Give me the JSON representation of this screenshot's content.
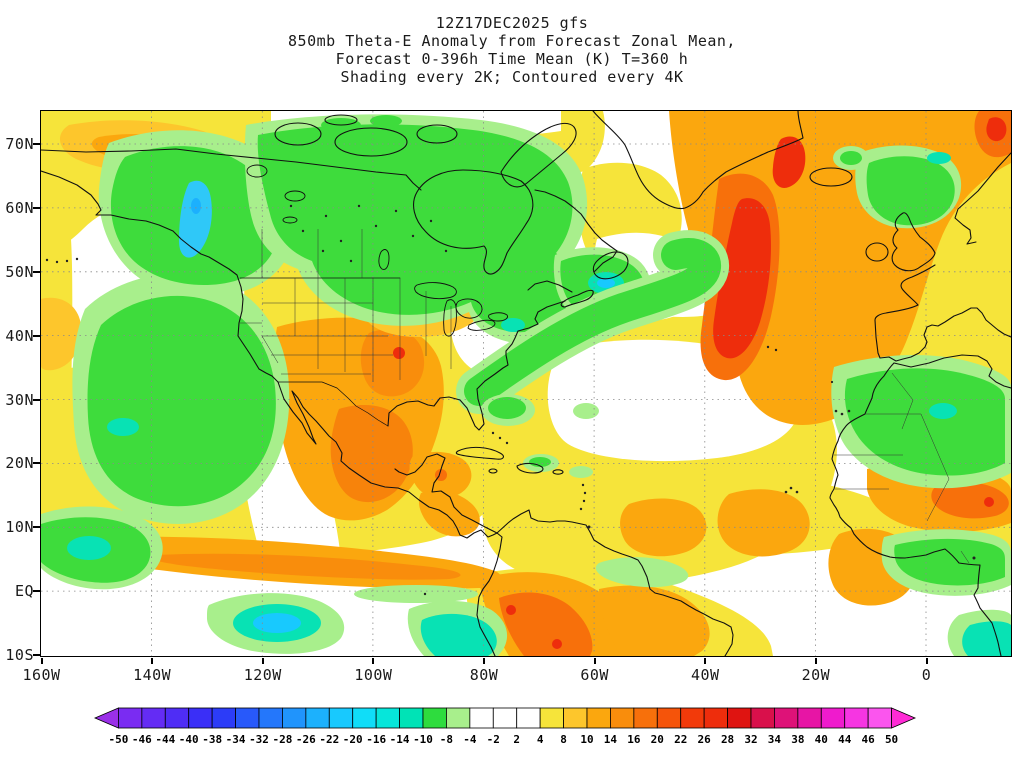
{
  "title": {
    "line1": "12Z17DEC2025 gfs",
    "line2": "850mb Theta-E Anomaly from Forecast Zonal Mean,",
    "line3": "Forecast 0-396h Time Mean (K) T=360 h",
    "line4": "Shading every 2K; Contoured every 4K"
  },
  "axes": {
    "lat_labels": [
      "70N",
      "60N",
      "50N",
      "40N",
      "30N",
      "20N",
      "10N",
      "EQ",
      "10S"
    ],
    "lon_labels": [
      "160W",
      "140W",
      "120W",
      "100W",
      "80W",
      "60W",
      "40W",
      "20W",
      "0"
    ]
  },
  "colorbar": {
    "labels": [
      "-50",
      "-46",
      "-44",
      "-40",
      "-38",
      "-34",
      "-32",
      "-28",
      "-26",
      "-22",
      "-20",
      "-16",
      "-14",
      "-10",
      "-8",
      "-4",
      "-2",
      "2",
      "4",
      "8",
      "10",
      "14",
      "16",
      "20",
      "22",
      "26",
      "28",
      "32",
      "34",
      "38",
      "40",
      "44",
      "46",
      "50"
    ],
    "colors": [
      "#9a30e8",
      "#7a2cf2",
      "#642cf4",
      "#4f2df5",
      "#3a2ff7",
      "#2c3cf8",
      "#2859fa",
      "#2477fb",
      "#2094fc",
      "#1cb1fd",
      "#18c9fe",
      "#10ddf8",
      "#06e6da",
      "#00e3b6",
      "#2edc3e",
      "#a8ef8c",
      "#ffffff",
      "#ffffff",
      "#ffffff",
      "#f6e43a",
      "#fdc62c",
      "#fba70e",
      "#f98d0c",
      "#f7700b",
      "#f5540a",
      "#f23a0a",
      "#ee2d0c",
      "#df1411",
      "#d9104b",
      "#de1278",
      "#e715a5",
      "#ef1bcd",
      "#f635e2",
      "#fb55ee",
      "#ff2bd6"
    ]
  },
  "chart_data": {
    "type": "heatmap",
    "title": "12Z17DEC2025 gfs — 850mb Theta-E Anomaly from Forecast Zonal Mean, Forecast 0-396h Time Mean (K) T=360 h",
    "subtitle": "Shading every 2K; Contoured every 4K",
    "model": "gfs",
    "run": "12Z17DEC2025",
    "variable": "850mb Theta-E Anomaly from Forecast Zonal Mean",
    "units": "K",
    "forecast_window": "Forecast 0-396h Time Mean",
    "valid_time": "T=360 h",
    "shading_interval_K": 2,
    "contour_interval_K": 4,
    "x_axis": {
      "tick_labels": [
        "160W",
        "140W",
        "120W",
        "100W",
        "80W",
        "60W",
        "40W",
        "20W",
        "0"
      ],
      "range": [
        "160W",
        "0"
      ]
    },
    "y_axis": {
      "tick_labels": [
        "70N",
        "60N",
        "50N",
        "40N",
        "30N",
        "20N",
        "10N",
        "EQ",
        "10S"
      ],
      "range": [
        "10S",
        "70N"
      ]
    },
    "grid": "dotted graticule every 10 deg latitude / 20 deg longitude",
    "legend_position": "bottom",
    "colorbar_levels": [
      -50,
      -46,
      -44,
      -40,
      -38,
      -34,
      -32,
      -28,
      -26,
      -22,
      -20,
      -16,
      -14,
      -10,
      -8,
      -4,
      -2,
      2,
      4,
      8,
      10,
      14,
      16,
      20,
      22,
      26,
      28,
      32,
      34,
      38,
      40,
      44,
      46,
      50
    ],
    "features": [
      {
        "region": "Northeast Pacific (150W-125W, 20N-50N)",
        "anomaly_K": "-8 to -14 (green)"
      },
      {
        "region": "Alaska / Yukon (155W-125W, 55N-72N)",
        "anomaly_K": "-8 to -16 (green with cyan core)"
      },
      {
        "region": "Central and eastern Canada / Hudson Bay (125W-60W, 45N-72N)",
        "anomaly_K": "-8 to -12 (green)"
      },
      {
        "region": "Newfoundland / Gulf of St. Lawrence",
        "anomaly_K": "-12 to -16 (teal spot)"
      },
      {
        "region": "Western Atlantic comma (80W-40W, 30N-50N)",
        "anomaly_K": "-8 to -12 (green band)"
      },
      {
        "region": "Central North Atlantic (38W-20W, 38N-62N)",
        "anomaly_K": "+14 to +26 (orange with red core)"
      },
      {
        "region": "Greenland / Iceland / NE Atlantic",
        "anomaly_K": "+8 to +16 (orange)"
      },
      {
        "region": "Southwestern US / Mexico",
        "anomaly_K": "+8 to +18, isolated +22 spot over central US"
      },
      {
        "region": "Subtropical Pacific band (10N-20N, 160W-80W)",
        "anomaly_K": "+6 to +14 (yellow-orange band)"
      },
      {
        "region": "Mid-Atlantic subtropics (55W-35W, 24N-38N)",
        "anomaly_K": "-2 to +2 (white)"
      },
      {
        "region": "Northwest Africa (15W-10E, 20N-34N)",
        "anomaly_K": "-8 to -12 (green)"
      },
      {
        "region": "Sahel / West Africa (10N-18N)",
        "anomaly_K": "+10 to +18 (orange, small red spot)"
      },
      {
        "region": "Gulf of Guinea coast",
        "anomaly_K": "-8 to -10 (green)"
      },
      {
        "region": "Northern South America / Andes",
        "anomaly_K": "+10 to +24 (orange-red)"
      },
      {
        "region": "Equatorial East Pacific patches",
        "anomaly_K": "-10 to -16 (teal)"
      },
      {
        "region": "UK / North Sea",
        "anomaly_K": "-8 to -12 (green)"
      },
      {
        "region": "Tropical Atlantic ITCZ blobs (45W-15W, 5N-13N)",
        "anomaly_K": "+10 to +14 (orange)"
      }
    ]
  }
}
